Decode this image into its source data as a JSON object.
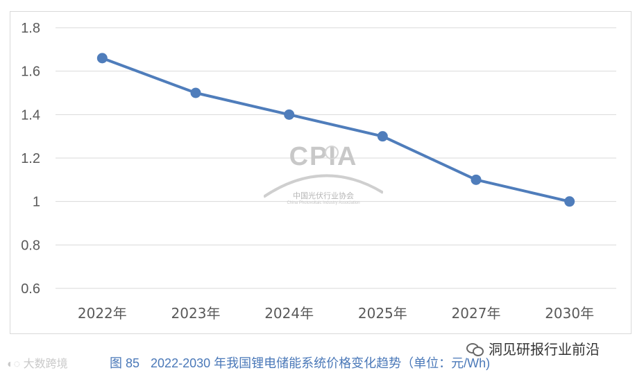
{
  "chart_data": {
    "type": "line",
    "categories": [
      "2022年",
      "2023年",
      "2024年",
      "2025年",
      "2027年",
      "2030年"
    ],
    "series": [
      {
        "values": [
          1.66,
          1.5,
          1.4,
          1.3,
          1.1,
          1.0
        ]
      }
    ],
    "ylim": [
      0.6,
      1.8
    ],
    "yticks": [
      0.6,
      0.8,
      1,
      1.2,
      1.4,
      1.6,
      1.8
    ],
    "ytick_labels": [
      "0.6",
      "0.8",
      "1",
      "1.2",
      "1.4",
      "1.6",
      "1.8"
    ],
    "grid": true,
    "colors": {
      "line": "#4f7dbb",
      "grid": "#d9d9d9",
      "tick": "#595959"
    }
  },
  "caption": {
    "figure_number": "图 85",
    "text": "2022-2030 年我国锂电储能系统价格变化趋势（单位：元/Wh)"
  },
  "watermark": {
    "logo_text": "CPIA",
    "logo_cn": "中国光伏行业协会",
    "logo_en": "China Photovoltaic Industry Association",
    "source_left": "大数跨境",
    "source_right": "洞见研报行业前沿"
  }
}
